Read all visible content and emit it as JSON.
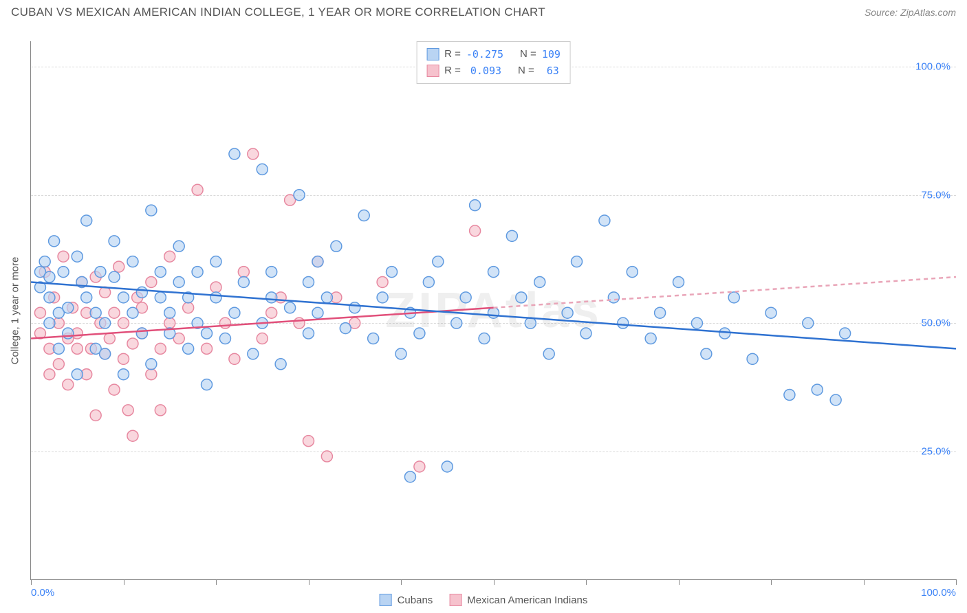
{
  "title": "CUBAN VS MEXICAN AMERICAN INDIAN COLLEGE, 1 YEAR OR MORE CORRELATION CHART",
  "source_label": "Source: ",
  "source_name": "ZipAtlas.com",
  "ylabel": "College, 1 year or more",
  "watermark": "ZIPAtlas",
  "chart": {
    "type": "scatter",
    "xlim": [
      0,
      100
    ],
    "ylim": [
      0,
      105
    ],
    "xtick_positions": [
      0,
      10,
      20,
      30,
      40,
      50,
      60,
      70,
      80,
      90,
      100
    ],
    "ytick_positions": [
      25,
      50,
      75,
      100
    ],
    "ytick_labels": [
      "25.0%",
      "50.0%",
      "75.0%",
      "100.0%"
    ],
    "x_first_label": "0.0%",
    "x_last_label": "100.0%",
    "background_color": "#ffffff",
    "grid_color": "#d9d9d9",
    "axis_color": "#888888",
    "tick_label_color": "#3b82f6",
    "marker_radius": 8,
    "marker_stroke_width": 1.5,
    "trend_line_width": 2.5
  },
  "series": {
    "cubans": {
      "label": "Cubans",
      "fill": "#b9d4f3",
      "stroke": "#5f9ae0",
      "fill_opacity": 0.65,
      "r_value": "-0.275",
      "n_value": "109",
      "trend": {
        "x1": 0,
        "y1": 58,
        "x2": 100,
        "y2": 45,
        "color": "#2f72d1",
        "dash": "none"
      },
      "points": [
        [
          1,
          60
        ],
        [
          1,
          57
        ],
        [
          1.5,
          62
        ],
        [
          2,
          59
        ],
        [
          2,
          55
        ],
        [
          2,
          50
        ],
        [
          2.5,
          66
        ],
        [
          3,
          45
        ],
        [
          3,
          52
        ],
        [
          3.5,
          60
        ],
        [
          4,
          53
        ],
        [
          4,
          48
        ],
        [
          5,
          63
        ],
        [
          5,
          40
        ],
        [
          5.5,
          58
        ],
        [
          6,
          55
        ],
        [
          6,
          70
        ],
        [
          7,
          45
        ],
        [
          7,
          52
        ],
        [
          7.5,
          60
        ],
        [
          8,
          50
        ],
        [
          8,
          44
        ],
        [
          9,
          59
        ],
        [
          9,
          66
        ],
        [
          10,
          40
        ],
        [
          10,
          55
        ],
        [
          11,
          52
        ],
        [
          11,
          62
        ],
        [
          12,
          48
        ],
        [
          12,
          56
        ],
        [
          13,
          72
        ],
        [
          13,
          42
        ],
        [
          14,
          55
        ],
        [
          14,
          60
        ],
        [
          15,
          48
        ],
        [
          15,
          52
        ],
        [
          16,
          58
        ],
        [
          16,
          65
        ],
        [
          17,
          45
        ],
        [
          17,
          55
        ],
        [
          18,
          50
        ],
        [
          18,
          60
        ],
        [
          19,
          48
        ],
        [
          19,
          38
        ],
        [
          20,
          55
        ],
        [
          20,
          62
        ],
        [
          21,
          47
        ],
        [
          22,
          52
        ],
        [
          22,
          83
        ],
        [
          23,
          58
        ],
        [
          24,
          44
        ],
        [
          25,
          50
        ],
        [
          25,
          80
        ],
        [
          26,
          55
        ],
        [
          26,
          60
        ],
        [
          27,
          42
        ],
        [
          28,
          53
        ],
        [
          29,
          75
        ],
        [
          30,
          48
        ],
        [
          30,
          58
        ],
        [
          31,
          52
        ],
        [
          31,
          62
        ],
        [
          32,
          55
        ],
        [
          33,
          65
        ],
        [
          34,
          49
        ],
        [
          35,
          53
        ],
        [
          36,
          71
        ],
        [
          37,
          47
        ],
        [
          38,
          55
        ],
        [
          39,
          60
        ],
        [
          40,
          44
        ],
        [
          41,
          52
        ],
        [
          41,
          20
        ],
        [
          42,
          48
        ],
        [
          43,
          58
        ],
        [
          44,
          62
        ],
        [
          45,
          22
        ],
        [
          46,
          50
        ],
        [
          47,
          55
        ],
        [
          48,
          73
        ],
        [
          49,
          47
        ],
        [
          50,
          52
        ],
        [
          50,
          60
        ],
        [
          52,
          67
        ],
        [
          53,
          55
        ],
        [
          54,
          50
        ],
        [
          55,
          58
        ],
        [
          56,
          44
        ],
        [
          58,
          52
        ],
        [
          59,
          62
        ],
        [
          60,
          48
        ],
        [
          62,
          70
        ],
        [
          63,
          55
        ],
        [
          64,
          50
        ],
        [
          65,
          60
        ],
        [
          67,
          47
        ],
        [
          68,
          52
        ],
        [
          70,
          58
        ],
        [
          72,
          50
        ],
        [
          73,
          44
        ],
        [
          75,
          48
        ],
        [
          76,
          55
        ],
        [
          78,
          43
        ],
        [
          80,
          52
        ],
        [
          82,
          36
        ],
        [
          84,
          50
        ],
        [
          85,
          37
        ],
        [
          87,
          35
        ],
        [
          88,
          48
        ]
      ]
    },
    "mexican": {
      "label": "Mexican American Indians",
      "fill": "#f6c2cd",
      "stroke": "#e788a0",
      "fill_opacity": 0.65,
      "r_value": "0.093",
      "n_value": "63",
      "trend_solid": {
        "x1": 0,
        "y1": 47,
        "x2": 50,
        "y2": 53,
        "color": "#e14f7a",
        "dash": "none"
      },
      "trend_dash": {
        "x1": 50,
        "y1": 53,
        "x2": 100,
        "y2": 59,
        "color": "#e9a5b8",
        "dash": "6,5"
      },
      "points": [
        [
          1,
          52
        ],
        [
          1,
          48
        ],
        [
          1.5,
          60
        ],
        [
          2,
          45
        ],
        [
          2,
          40
        ],
        [
          2.5,
          55
        ],
        [
          3,
          50
        ],
        [
          3,
          42
        ],
        [
          3.5,
          63
        ],
        [
          4,
          47
        ],
        [
          4,
          38
        ],
        [
          4.5,
          53
        ],
        [
          5,
          45
        ],
        [
          5,
          48
        ],
        [
          5.5,
          58
        ],
        [
          6,
          40
        ],
        [
          6,
          52
        ],
        [
          6.5,
          45
        ],
        [
          7,
          59
        ],
        [
          7,
          32
        ],
        [
          7.5,
          50
        ],
        [
          8,
          44
        ],
        [
          8,
          56
        ],
        [
          8.5,
          47
        ],
        [
          9,
          37
        ],
        [
          9,
          52
        ],
        [
          9.5,
          61
        ],
        [
          10,
          43
        ],
        [
          10,
          50
        ],
        [
          10.5,
          33
        ],
        [
          11,
          46
        ],
        [
          11,
          28
        ],
        [
          11.5,
          55
        ],
        [
          12,
          48
        ],
        [
          12,
          53
        ],
        [
          13,
          40
        ],
        [
          13,
          58
        ],
        [
          14,
          45
        ],
        [
          14,
          33
        ],
        [
          15,
          50
        ],
        [
          15,
          63
        ],
        [
          16,
          47
        ],
        [
          17,
          53
        ],
        [
          18,
          76
        ],
        [
          19,
          45
        ],
        [
          20,
          57
        ],
        [
          21,
          50
        ],
        [
          22,
          43
        ],
        [
          23,
          60
        ],
        [
          24,
          83
        ],
        [
          25,
          47
        ],
        [
          26,
          52
        ],
        [
          27,
          55
        ],
        [
          28,
          74
        ],
        [
          29,
          50
        ],
        [
          30,
          27
        ],
        [
          31,
          62
        ],
        [
          32,
          24
        ],
        [
          33,
          55
        ],
        [
          35,
          50
        ],
        [
          38,
          58
        ],
        [
          42,
          22
        ],
        [
          48,
          68
        ]
      ]
    }
  },
  "legend_top": {
    "r_label": "R =",
    "n_label": "N ="
  },
  "legend_bottom": {
    "items": [
      "cubans",
      "mexican"
    ]
  }
}
